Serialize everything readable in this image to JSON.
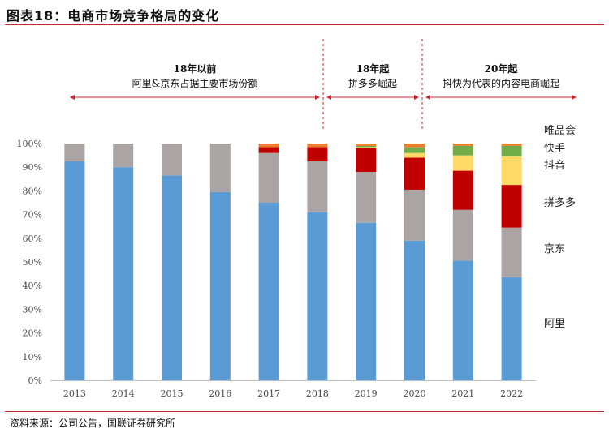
{
  "header": {
    "title": "图表18：电商市场竞争格局的变化"
  },
  "footer": {
    "source": "资料来源：公司公告，国联证券研究所"
  },
  "periods": [
    {
      "title": "18年以前",
      "subtitle": "阿里&京东占据主要市场份额"
    },
    {
      "title": "18年起",
      "subtitle": "拼多多崛起"
    },
    {
      "title": "20年起",
      "subtitle": "抖快为代表的内容电商崛起"
    }
  ],
  "chart_data": {
    "type": "bar",
    "stacked": true,
    "title": "电商市场竞争格局的变化",
    "categories": [
      "2013",
      "2014",
      "2015",
      "2016",
      "2017",
      "2018",
      "2019",
      "2020",
      "2021",
      "2022"
    ],
    "ylim": [
      0,
      100
    ],
    "y_ticks": [
      "0%",
      "10%",
      "20%",
      "30%",
      "40%",
      "50%",
      "60%",
      "70%",
      "80%",
      "90%",
      "100%"
    ],
    "grid": false,
    "legend": "right",
    "series": [
      {
        "name": "阿里",
        "color": "#5b9bd5",
        "values": [
          92.5,
          90,
          86.5,
          79.5,
          75,
          71,
          66.5,
          59,
          50.5,
          43.5
        ]
      },
      {
        "name": "京东",
        "color": "#aba4a5",
        "values": [
          7.5,
          10,
          13.5,
          20.5,
          21,
          21.5,
          21.5,
          21.5,
          21.5,
          21
        ]
      },
      {
        "name": "拼多多",
        "color": "#c00000",
        "values": [
          0,
          0,
          0,
          0,
          2.5,
          6,
          10,
          13.5,
          16.5,
          18
        ]
      },
      {
        "name": "抖音",
        "color": "#ffd966",
        "values": [
          0,
          0,
          0,
          0,
          0,
          0,
          0.5,
          2,
          6.5,
          12
        ]
      },
      {
        "name": "快手",
        "color": "#70ad47",
        "values": [
          0,
          0,
          0,
          0,
          0,
          0,
          0.5,
          2.5,
          4,
          4.5
        ]
      },
      {
        "name": "唯品会",
        "color": "#ed7d31",
        "values": [
          0,
          0,
          0,
          0,
          1.5,
          1.5,
          1,
          1.5,
          1,
          1
        ]
      }
    ]
  }
}
